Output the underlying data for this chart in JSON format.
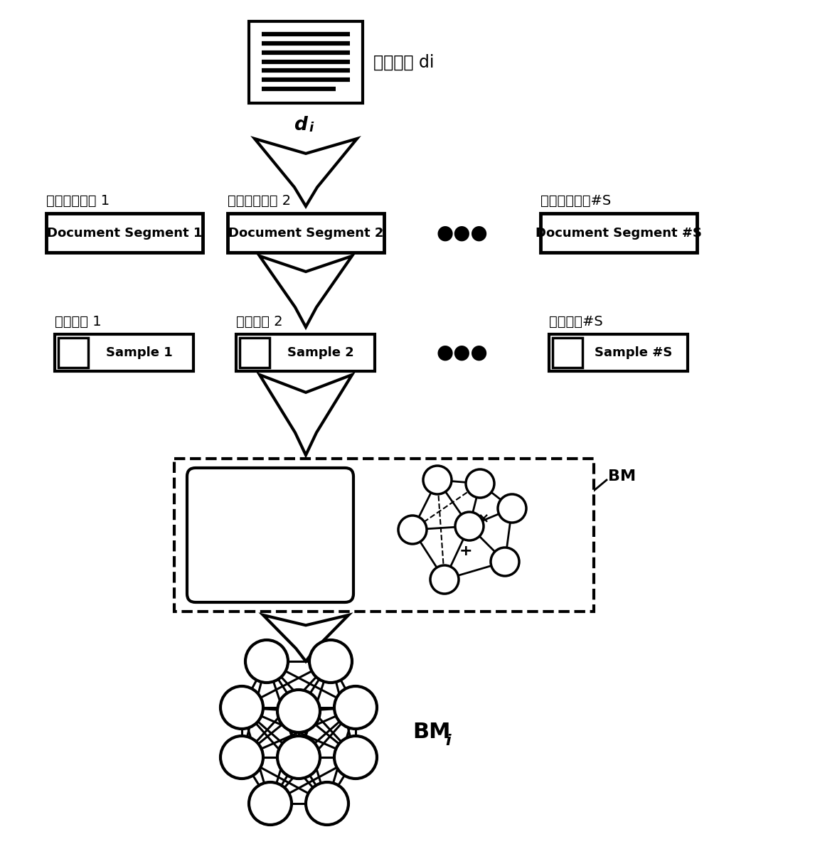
{
  "bg_color": "#ffffff",
  "doc_label": "选定文档 di",
  "di_label": "d",
  "seg_labels": [
    "滑动窗口位置 1",
    "滑动窗口位置 2",
    "滑动窗口位置#S"
  ],
  "seg_box_labels": [
    "Document Segment 1",
    "Document Segment 2",
    "Document Segment #S"
  ],
  "text_seg_labels": [
    "文本片段 1",
    "文本片段 2",
    "文本片段#S"
  ],
  "sample_box_labels": [
    "Sample 1",
    "Sample 2",
    "Sample #S"
  ],
  "bm_label": "BM",
  "bmi_label": "BM",
  "dots": "●●●"
}
